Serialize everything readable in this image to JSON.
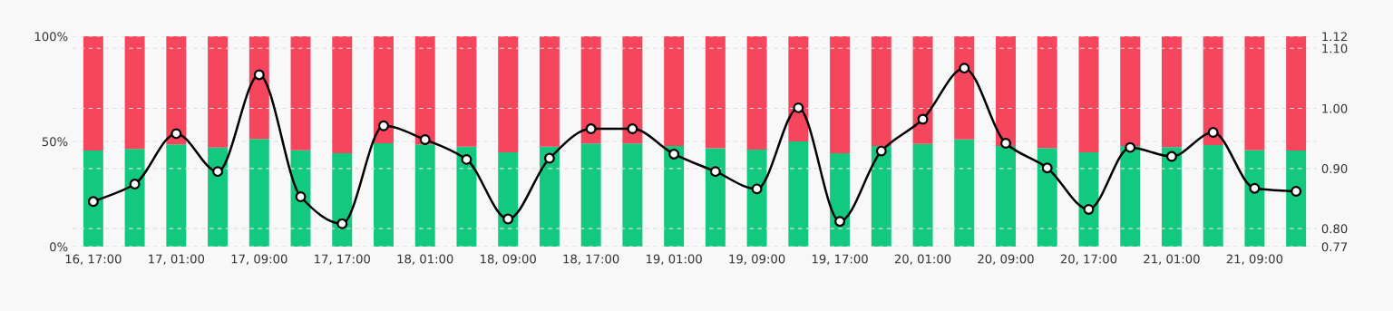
{
  "chart_data": {
    "type": "bar",
    "stacked": true,
    "categories": [
      "16, 17:00",
      null,
      "17, 01:00",
      null,
      "17, 09:00",
      null,
      "17, 17:00",
      null,
      "18, 01:00",
      null,
      "18, 09:00",
      null,
      "18, 17:00",
      null,
      "19, 01:00",
      null,
      "19, 09:00",
      null,
      "19, 17:00",
      null,
      "20, 01:00",
      null,
      "20, 09:00",
      null,
      "20, 17:00",
      null,
      "21, 01:00",
      null,
      "21, 09:00",
      null
    ],
    "series": [
      {
        "color": "#12c97f",
        "values": [
          45.7,
          46.4,
          48.6,
          47.1,
          51.2,
          45.8,
          44.4,
          49.1,
          48.6,
          47.5,
          44.8,
          47.5,
          49.0,
          49.0,
          47.8,
          46.8,
          46.1,
          50.0,
          44.4,
          47.8,
          48.8,
          51.0,
          47.8,
          46.9,
          44.8,
          47.8,
          47.3,
          48.3,
          45.8,
          45.7
        ]
      },
      {
        "color": "#f5465e",
        "values": [
          54.3,
          53.6,
          51.4,
          52.9,
          48.8,
          54.2,
          55.6,
          50.9,
          51.4,
          52.5,
          55.2,
          52.5,
          51.0,
          51.0,
          52.2,
          53.2,
          53.9,
          50.0,
          55.6,
          52.2,
          51.2,
          49.0,
          52.2,
          53.1,
          55.2,
          52.2,
          52.7,
          51.7,
          54.2,
          54.3
        ]
      },
      {
        "type": "line",
        "axis": "y2",
        "color": "#000000",
        "marker": "circle",
        "values": [
          0.845,
          0.874,
          0.958,
          0.895,
          1.056,
          0.853,
          0.808,
          0.971,
          0.948,
          0.915,
          0.816,
          0.917,
          0.966,
          0.966,
          0.924,
          0.895,
          0.866,
          1.001,
          0.812,
          0.929,
          0.982,
          1.067,
          0.942,
          0.901,
          0.832,
          0.935,
          0.92,
          0.96,
          0.867,
          0.862
        ]
      }
    ],
    "ylim": [
      0,
      100
    ],
    "yticks": [
      {
        "value": 0,
        "label": "0%"
      },
      {
        "value": 50,
        "label": "50%"
      },
      {
        "value": 100,
        "label": "100%"
      }
    ],
    "y2lim": [
      0.77,
      1.12
    ],
    "y2ticks": [
      {
        "value": 0.77,
        "label": "0.77"
      },
      {
        "value": 0.8,
        "label": "0.80"
      },
      {
        "value": 0.9,
        "label": "0.90"
      },
      {
        "value": 1.0,
        "label": "1.00"
      },
      {
        "value": 1.1,
        "label": "1.10"
      },
      {
        "value": 1.12,
        "label": "1.12"
      }
    ],
    "grid": "y"
  }
}
